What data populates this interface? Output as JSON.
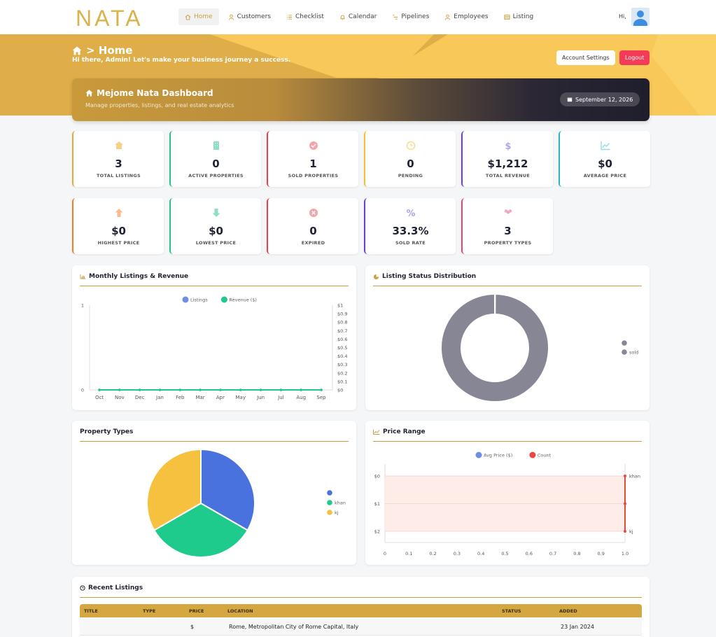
{
  "nav": {
    "logo": "NATA",
    "items": [
      {
        "label": "Home",
        "icon": "home-icon",
        "active": true
      },
      {
        "label": "Customers",
        "icon": "user-icon"
      },
      {
        "label": "Checklist",
        "icon": "list-icon"
      },
      {
        "label": "Calendar",
        "icon": "bell-icon"
      },
      {
        "label": "Pipelines",
        "icon": "pipeline-icon"
      },
      {
        "label": "Employees",
        "icon": "user-icon"
      },
      {
        "label": "Listing",
        "icon": "table-icon"
      }
    ],
    "greeting": "Hi,"
  },
  "hero": {
    "breadcrumb": "> Home",
    "greeting": "Hi there, Admin! Let's make your business journey a success.",
    "account_settings": "Account Settings",
    "logout": "Logout",
    "banner_title": "Mejome Nata Dashboard",
    "banner_subtitle": "Manage properties, listings, and real estate analytics",
    "date": "September 12, 2026"
  },
  "stats": [
    {
      "value": "3",
      "label": "TOTAL LISTINGS",
      "color": "#e8a93a",
      "icon": "home-icon",
      "icon_color": "#f6cf8a"
    },
    {
      "value": "0",
      "label": "ACTIVE PROPERTIES",
      "color": "#27c08a",
      "icon": "building-icon",
      "icon_color": "#8fe0c0"
    },
    {
      "value": "1",
      "label": "SOLD PROPERTIES",
      "color": "#e2424c",
      "icon": "check-circle-icon",
      "icon_color": "#f4a5a9"
    },
    {
      "value": "0",
      "label": "PENDING",
      "color": "#f0c23b",
      "icon": "clock-icon",
      "icon_color": "#f6dc8e"
    },
    {
      "value": "$1,212",
      "label": "TOTAL REVENUE",
      "color": "#6b3fd6",
      "icon": "dollar-icon",
      "icon_color": "#b5a1ec"
    },
    {
      "value": "$0",
      "label": "AVERAGE PRICE",
      "color": "#2bb3c7",
      "icon": "chart-line-icon",
      "icon_color": "#97dae4"
    },
    {
      "value": "$0",
      "label": "HIGHEST PRICE",
      "color": "#ef7f2f",
      "icon": "arrow-up-icon",
      "icon_color": "#f7bd92"
    },
    {
      "value": "$0",
      "label": "LOWEST PRICE",
      "color": "#27c08a",
      "icon": "arrow-down-icon",
      "icon_color": "#8fe0c0"
    },
    {
      "value": "0",
      "label": "EXPIRED",
      "color": "#e2424c",
      "icon": "x-circle-icon",
      "icon_color": "#f4a5a9"
    },
    {
      "value": "33.3%",
      "label": "SOLD RATE",
      "color": "#6b3fd6",
      "icon": "percent-icon",
      "icon_color": "#b5a1ec"
    },
    {
      "value": "3",
      "label": "PROPERTY TYPES",
      "color": "#e0457a",
      "icon": "users-icon",
      "icon_color": "#f3a7c1"
    }
  ],
  "panels": {
    "monthly": "Monthly Listings & Revenue",
    "status": "Listing Status Distribution",
    "types": "Property Types",
    "price": "Price Range",
    "recent": "Recent Listings"
  },
  "chart_data": [
    {
      "type": "line",
      "categories": [
        "Oct",
        "Nov",
        "Dec",
        "Jan",
        "Feb",
        "Mar",
        "Apr",
        "May",
        "Jun",
        "Jul",
        "Aug",
        "Sep"
      ],
      "series": [
        {
          "name": "Listings",
          "values": [
            0,
            0,
            0,
            0,
            0,
            0,
            0,
            0,
            0,
            0,
            0,
            0
          ],
          "color": "#6f8fe6"
        },
        {
          "name": "Revenue ($)",
          "values": [
            0,
            0,
            0,
            0,
            0,
            0,
            0,
            0,
            0,
            0,
            0,
            0
          ],
          "color": "#1ec98b"
        }
      ],
      "y_left": {
        "ticks": [
          "0",
          "1"
        ],
        "range": [
          0,
          1
        ]
      },
      "y_right": {
        "ticks": [
          "$0",
          "$0.1",
          "$0.2",
          "$0.3",
          "$0.4",
          "$0.5",
          "$0.6",
          "$0.7",
          "$0.8",
          "$0.9",
          "$1"
        ],
        "range": [
          0,
          1
        ]
      }
    },
    {
      "type": "pie",
      "donut": true,
      "slices": [
        {
          "label": "",
          "value": 0.001,
          "color": "#868695"
        },
        {
          "label": "sold",
          "value": 1,
          "color": "#868695"
        }
      ]
    },
    {
      "type": "pie",
      "slices": [
        {
          "label": "",
          "value": 1,
          "color": "#4a72df"
        },
        {
          "label": "khan",
          "value": 1,
          "color": "#1ecb8c"
        },
        {
          "label": "kj",
          "value": 1,
          "color": "#f6c13e"
        }
      ]
    },
    {
      "type": "bar",
      "orientation": "horizontal",
      "series": [
        {
          "name": "Avg Price ($)",
          "color": "#6f8fe6"
        },
        {
          "name": "Count",
          "color": "#e8483e"
        }
      ],
      "y_ticks": [
        "$0",
        "$1",
        "$2"
      ],
      "x_ticks": [
        "0",
        "0.1",
        "0.2",
        "0.3",
        "0.4",
        "0.5",
        "0.6",
        "0.7",
        "0.8",
        "0.9",
        "1.0"
      ],
      "y_right_ticks": [
        "khan",
        "kj"
      ],
      "xlim": [
        0,
        1
      ]
    }
  ],
  "table": {
    "headers": [
      "TITLE",
      "TYPE",
      "PRICE",
      "LOCATION",
      "STATUS",
      "ADDED"
    ],
    "rows": [
      {
        "title": "",
        "type": "",
        "price": "$",
        "location": "Rome, Metropolitan City of Rome Capital, Italy",
        "status": "",
        "added": "23 Jan 2024"
      }
    ]
  }
}
